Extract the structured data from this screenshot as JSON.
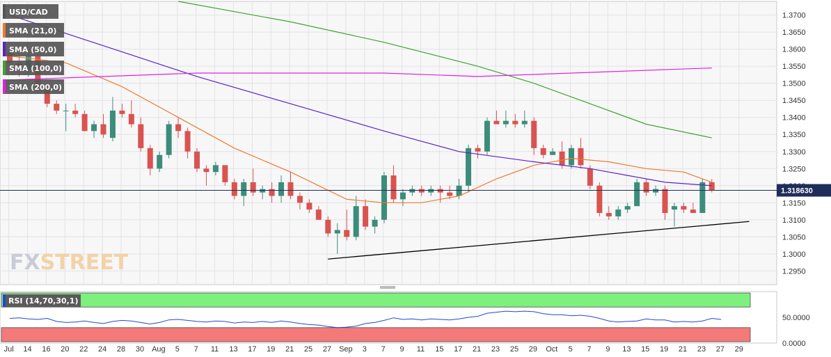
{
  "chart_data": {
    "type": "candlestick",
    "symbol": "USD/CAD",
    "price_axis": {
      "ylim": [
        1.291,
        1.374
      ],
      "ticks": [
        "1.3700",
        "1.3650",
        "1.3600",
        "1.3550",
        "1.3500",
        "1.3450",
        "1.3400",
        "1.3350",
        "1.3300",
        "1.3250",
        "1.3200",
        "1.3150",
        "1.3100",
        "1.3050",
        "1.3000",
        "1.2950"
      ],
      "last_price_label": "1.318630",
      "last_price": 1.31863
    },
    "x_axis": {
      "ticks": [
        "Jul",
        "14",
        "16",
        "20",
        "22",
        "24",
        "28",
        "30",
        "Aug",
        "5",
        "7",
        "11",
        "13",
        "17",
        "19",
        "21",
        "25",
        "27",
        "Sep",
        "3",
        "7",
        "9",
        "11",
        "15",
        "17",
        "21",
        "23",
        "25",
        "29",
        "Oct",
        "5",
        "7",
        "9",
        "13",
        "15",
        "19",
        "21",
        "23",
        "27",
        "29"
      ]
    },
    "candles": [
      {
        "o": 1.359,
        "h": 1.36,
        "l": 1.354,
        "c": 1.356
      },
      {
        "o": 1.356,
        "h": 1.358,
        "l": 1.352,
        "c": 1.354
      },
      {
        "o": 1.354,
        "h": 1.359,
        "l": 1.352,
        "c": 1.358
      },
      {
        "o": 1.358,
        "h": 1.359,
        "l": 1.348,
        "c": 1.349
      },
      {
        "o": 1.349,
        "h": 1.35,
        "l": 1.343,
        "c": 1.344
      },
      {
        "o": 1.344,
        "h": 1.345,
        "l": 1.341,
        "c": 1.342
      },
      {
        "o": 1.342,
        "h": 1.344,
        "l": 1.336,
        "c": 1.342
      },
      {
        "o": 1.342,
        "h": 1.344,
        "l": 1.34,
        "c": 1.341
      },
      {
        "o": 1.341,
        "h": 1.342,
        "l": 1.336,
        "c": 1.336
      },
      {
        "o": 1.336,
        "h": 1.339,
        "l": 1.334,
        "c": 1.338
      },
      {
        "o": 1.338,
        "h": 1.341,
        "l": 1.334,
        "c": 1.335
      },
      {
        "o": 1.334,
        "h": 1.346,
        "l": 1.333,
        "c": 1.342
      },
      {
        "o": 1.342,
        "h": 1.344,
        "l": 1.34,
        "c": 1.341
      },
      {
        "o": 1.341,
        "h": 1.345,
        "l": 1.337,
        "c": 1.338
      },
      {
        "o": 1.338,
        "h": 1.34,
        "l": 1.33,
        "c": 1.331
      },
      {
        "o": 1.331,
        "h": 1.332,
        "l": 1.323,
        "c": 1.325
      },
      {
        "o": 1.325,
        "h": 1.33,
        "l": 1.324,
        "c": 1.329
      },
      {
        "o": 1.329,
        "h": 1.339,
        "l": 1.328,
        "c": 1.338
      },
      {
        "o": 1.338,
        "h": 1.34,
        "l": 1.334,
        "c": 1.336
      },
      {
        "o": 1.336,
        "h": 1.337,
        "l": 1.328,
        "c": 1.33
      },
      {
        "o": 1.33,
        "h": 1.331,
        "l": 1.324,
        "c": 1.325
      },
      {
        "o": 1.325,
        "h": 1.326,
        "l": 1.32,
        "c": 1.324
      },
      {
        "o": 1.324,
        "h": 1.327,
        "l": 1.323,
        "c": 1.326
      },
      {
        "o": 1.326,
        "h": 1.326,
        "l": 1.32,
        "c": 1.321
      },
      {
        "o": 1.321,
        "h": 1.322,
        "l": 1.316,
        "c": 1.317
      },
      {
        "o": 1.317,
        "h": 1.322,
        "l": 1.314,
        "c": 1.321
      },
      {
        "o": 1.321,
        "h": 1.325,
        "l": 1.317,
        "c": 1.318
      },
      {
        "o": 1.318,
        "h": 1.32,
        "l": 1.316,
        "c": 1.319
      },
      {
        "o": 1.319,
        "h": 1.321,
        "l": 1.315,
        "c": 1.317
      },
      {
        "o": 1.317,
        "h": 1.323,
        "l": 1.315,
        "c": 1.321
      },
      {
        "o": 1.321,
        "h": 1.324,
        "l": 1.316,
        "c": 1.317
      },
      {
        "o": 1.317,
        "h": 1.318,
        "l": 1.313,
        "c": 1.315
      },
      {
        "o": 1.315,
        "h": 1.316,
        "l": 1.312,
        "c": 1.313
      },
      {
        "o": 1.313,
        "h": 1.314,
        "l": 1.31,
        "c": 1.31
      },
      {
        "o": 1.31,
        "h": 1.311,
        "l": 1.305,
        "c": 1.306
      },
      {
        "o": 1.306,
        "h": 1.309,
        "l": 1.3,
        "c": 1.307
      },
      {
        "o": 1.307,
        "h": 1.313,
        "l": 1.304,
        "c": 1.305
      },
      {
        "o": 1.305,
        "h": 1.317,
        "l": 1.304,
        "c": 1.314
      },
      {
        "o": 1.314,
        "h": 1.316,
        "l": 1.307,
        "c": 1.308
      },
      {
        "o": 1.308,
        "h": 1.311,
        "l": 1.306,
        "c": 1.31
      },
      {
        "o": 1.31,
        "h": 1.324,
        "l": 1.309,
        "c": 1.323
      },
      {
        "o": 1.323,
        "h": 1.326,
        "l": 1.315,
        "c": 1.316
      },
      {
        "o": 1.316,
        "h": 1.319,
        "l": 1.314,
        "c": 1.318
      },
      {
        "o": 1.318,
        "h": 1.32,
        "l": 1.317,
        "c": 1.319
      },
      {
        "o": 1.319,
        "h": 1.32,
        "l": 1.317,
        "c": 1.318
      },
      {
        "o": 1.318,
        "h": 1.32,
        "l": 1.317,
        "c": 1.319
      },
      {
        "o": 1.319,
        "h": 1.32,
        "l": 1.315,
        "c": 1.318
      },
      {
        "o": 1.318,
        "h": 1.32,
        "l": 1.316,
        "c": 1.317
      },
      {
        "o": 1.317,
        "h": 1.322,
        "l": 1.316,
        "c": 1.32
      },
      {
        "o": 1.32,
        "h": 1.332,
        "l": 1.318,
        "c": 1.331
      },
      {
        "o": 1.331,
        "h": 1.332,
        "l": 1.328,
        "c": 1.33
      },
      {
        "o": 1.33,
        "h": 1.34,
        "l": 1.329,
        "c": 1.339
      },
      {
        "o": 1.339,
        "h": 1.342,
        "l": 1.338,
        "c": 1.338
      },
      {
        "o": 1.338,
        "h": 1.342,
        "l": 1.337,
        "c": 1.339
      },
      {
        "o": 1.339,
        "h": 1.341,
        "l": 1.337,
        "c": 1.338
      },
      {
        "o": 1.338,
        "h": 1.342,
        "l": 1.337,
        "c": 1.339
      },
      {
        "o": 1.339,
        "h": 1.34,
        "l": 1.329,
        "c": 1.331
      },
      {
        "o": 1.331,
        "h": 1.332,
        "l": 1.328,
        "c": 1.329
      },
      {
        "o": 1.329,
        "h": 1.331,
        "l": 1.329,
        "c": 1.33
      },
      {
        "o": 1.33,
        "h": 1.333,
        "l": 1.325,
        "c": 1.326
      },
      {
        "o": 1.326,
        "h": 1.332,
        "l": 1.325,
        "c": 1.331
      },
      {
        "o": 1.331,
        "h": 1.334,
        "l": 1.325,
        "c": 1.326
      },
      {
        "o": 1.325,
        "h": 1.326,
        "l": 1.319,
        "c": 1.32
      },
      {
        "o": 1.32,
        "h": 1.321,
        "l": 1.311,
        "c": 1.312
      },
      {
        "o": 1.312,
        "h": 1.314,
        "l": 1.31,
        "c": 1.311
      },
      {
        "o": 1.311,
        "h": 1.314,
        "l": 1.31,
        "c": 1.313
      },
      {
        "o": 1.313,
        "h": 1.315,
        "l": 1.312,
        "c": 1.314
      },
      {
        "o": 1.314,
        "h": 1.322,
        "l": 1.314,
        "c": 1.321
      },
      {
        "o": 1.321,
        "h": 1.322,
        "l": 1.317,
        "c": 1.318
      },
      {
        "o": 1.318,
        "h": 1.32,
        "l": 1.317,
        "c": 1.319
      },
      {
        "o": 1.319,
        "h": 1.32,
        "l": 1.31,
        "c": 1.312
      },
      {
        "o": 1.313,
        "h": 1.315,
        "l": 1.308,
        "c": 1.314
      },
      {
        "o": 1.314,
        "h": 1.315,
        "l": 1.312,
        "c": 1.313
      },
      {
        "o": 1.313,
        "h": 1.315,
        "l": 1.312,
        "c": 1.312
      },
      {
        "o": 1.312,
        "h": 1.322,
        "l": 1.312,
        "c": 1.321
      },
      {
        "o": 1.321,
        "h": 1.322,
        "l": 1.318,
        "c": 1.31863
      }
    ],
    "series": [
      {
        "name": "SMA (21,0)",
        "color": "#f07a2a",
        "values": [
          [
            0,
            1.358
          ],
          [
            6,
            1.356
          ],
          [
            12,
            1.349
          ],
          [
            18,
            1.34
          ],
          [
            24,
            1.331
          ],
          [
            30,
            1.324
          ],
          [
            36,
            1.316
          ],
          [
            40,
            1.315
          ],
          [
            44,
            1.315
          ],
          [
            48,
            1.317
          ],
          [
            52,
            1.322
          ],
          [
            56,
            1.326
          ],
          [
            60,
            1.328
          ],
          [
            64,
            1.327
          ],
          [
            68,
            1.325
          ],
          [
            72,
            1.324
          ],
          [
            75,
            1.321
          ]
        ]
      },
      {
        "name": "SMA (50,0)",
        "color": "#5a22cc",
        "values": [
          [
            0,
            1.37
          ],
          [
            10,
            1.361
          ],
          [
            20,
            1.352
          ],
          [
            30,
            1.344
          ],
          [
            40,
            1.336
          ],
          [
            48,
            1.33
          ],
          [
            56,
            1.327
          ],
          [
            62,
            1.325
          ],
          [
            66,
            1.323
          ],
          [
            70,
            1.321
          ],
          [
            75,
            1.32
          ]
        ]
      },
      {
        "name": "SMA (100,0)",
        "color": "#3fa52e",
        "values": [
          [
            18,
            1.374
          ],
          [
            30,
            1.368
          ],
          [
            40,
            1.362
          ],
          [
            50,
            1.355
          ],
          [
            56,
            1.35
          ],
          [
            62,
            1.344
          ],
          [
            68,
            1.338
          ],
          [
            75,
            1.334
          ]
        ]
      },
      {
        "name": "SMA (200,0)",
        "color": "#e020e6",
        "values": [
          [
            0,
            1.351
          ],
          [
            10,
            1.352
          ],
          [
            20,
            1.353
          ],
          [
            40,
            1.353
          ],
          [
            50,
            1.352
          ],
          [
            60,
            1.353
          ],
          [
            75,
            1.3545
          ]
        ]
      }
    ],
    "trendline": {
      "color": "#000000",
      "from": [
        34,
        1.2985
      ],
      "to": [
        79,
        1.3095
      ]
    },
    "rsi": {
      "label": "RSI (14,70,30,1)",
      "ticks": [
        "50.0000",
        "0.0000"
      ],
      "ylim": [
        0,
        100
      ],
      "overbought": 70,
      "oversold": 30,
      "color": "#2147d6",
      "values": [
        48,
        49,
        47,
        46,
        48,
        42,
        40,
        41,
        43,
        40,
        38,
        42,
        44,
        43,
        40,
        37,
        40,
        45,
        46,
        44,
        42,
        41,
        43,
        42,
        39,
        41,
        40,
        42,
        40,
        43,
        41,
        38,
        36,
        35,
        32,
        30,
        31,
        33,
        38,
        40,
        44,
        49,
        46,
        47,
        45,
        47,
        46,
        45,
        47,
        50,
        52,
        58,
        60,
        62,
        61,
        62,
        61,
        57,
        55,
        55,
        53,
        54,
        52,
        48,
        43,
        41,
        42,
        43,
        47,
        45,
        45,
        41,
        42,
        41,
        43,
        48,
        46
      ]
    }
  },
  "legend": [
    {
      "label": "USD/CAD",
      "color": "#555555"
    },
    {
      "label": "SMA (21,0)",
      "color": "#f07a2a"
    },
    {
      "label": "SMA (50,0)",
      "color": "#5a22cc"
    },
    {
      "label": "SMA (100,0)",
      "color": "#3fa52e"
    },
    {
      "label": "SMA (200,0)",
      "color": "#e020e6"
    }
  ],
  "logo": {
    "fx": "FX",
    "street": "STREET"
  },
  "colors": {
    "up": "#3b8d7a",
    "down": "#d9534f",
    "panel": "#f7f7f8",
    "grid": "#e3e3e6"
  }
}
